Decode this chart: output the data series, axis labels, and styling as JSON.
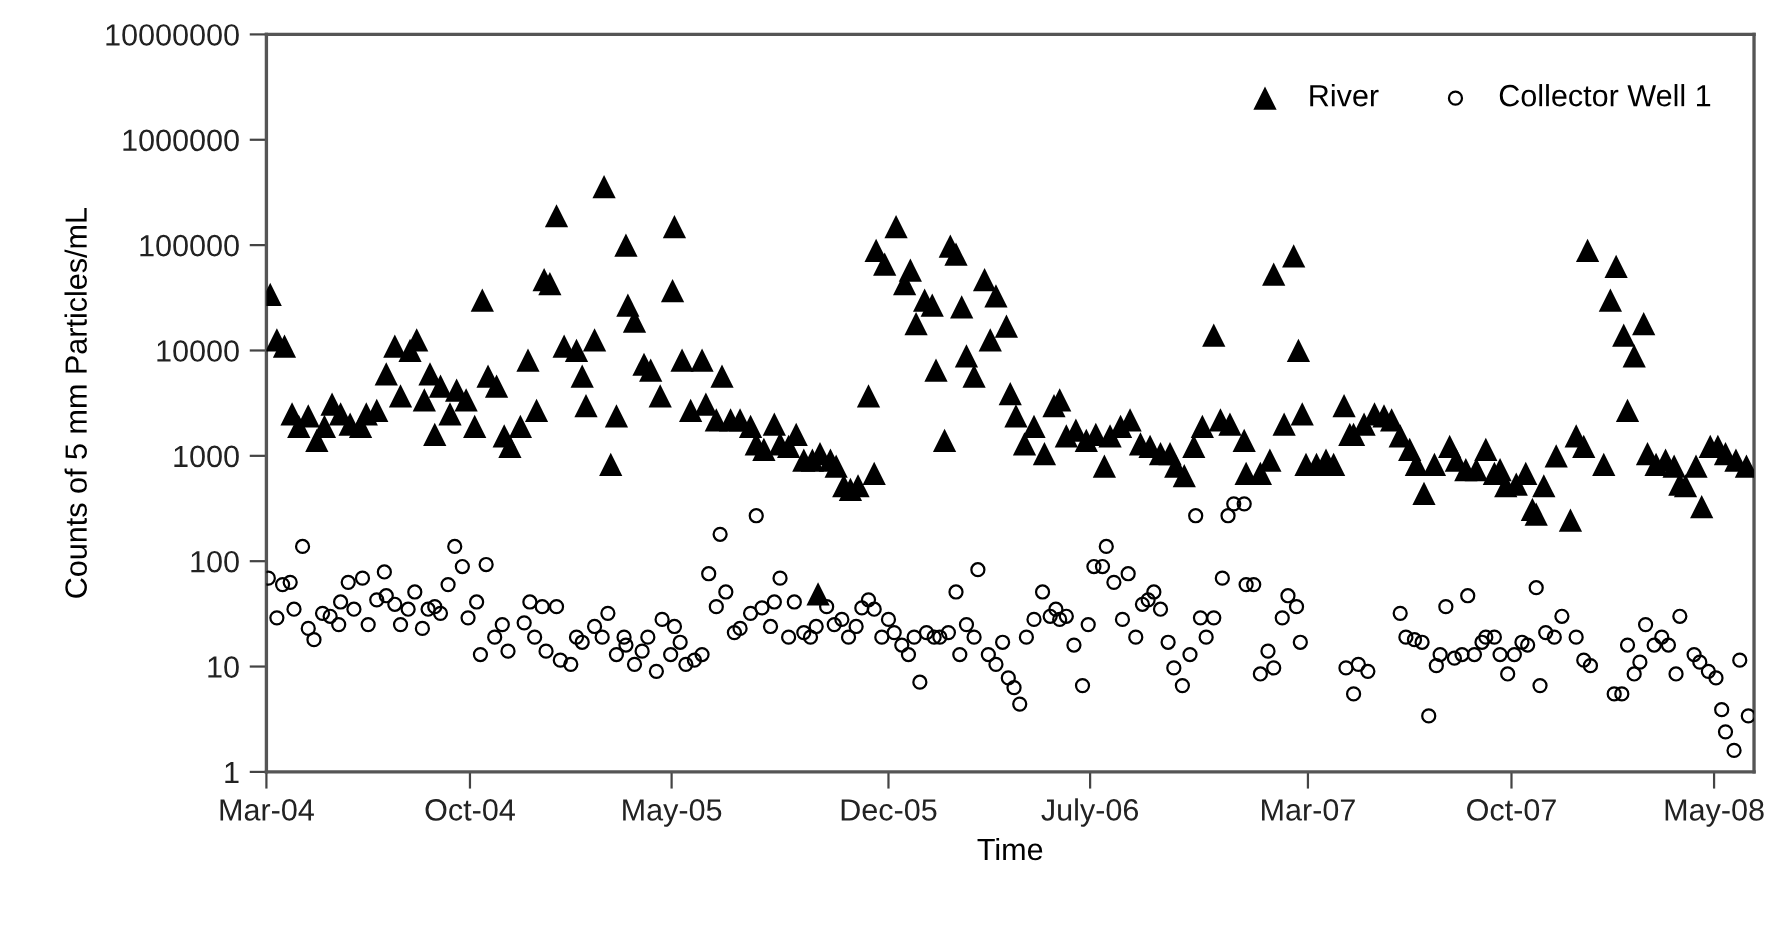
{
  "chart_data": {
    "type": "scatter",
    "xlabel": "Time",
    "ylabel": "Counts of 5 mm Particles/mL",
    "log": "y",
    "grid": false,
    "legend": "top right",
    "xlim": [
      "2004-03-01",
      "2008-06-12"
    ],
    "xticks": [
      {
        "value": "2004-03-01",
        "label": "Mar-04"
      },
      {
        "value": "2004-10-01",
        "label": "Oct-04"
      },
      {
        "value": "2005-05-01",
        "label": "May-05"
      },
      {
        "value": "2005-12-15",
        "label": "Dec-05"
      },
      {
        "value": "2006-07-15",
        "label": "July-06"
      },
      {
        "value": "2007-03-01",
        "label": "Mar-07"
      },
      {
        "value": "2007-10-01",
        "label": "Oct-07"
      },
      {
        "value": "2008-05-01",
        "label": "May-08"
      }
    ],
    "ylim": [
      1,
      10000000
    ],
    "yticks": [
      1,
      10,
      100,
      1000,
      10000,
      100000,
      1000000,
      10000000
    ],
    "series": [
      {
        "name": "River",
        "color": "#000000",
        "marker": "triangle",
        "x": [
          "2004-03-05",
          "2004-03-12",
          "2004-03-20",
          "2004-03-28",
          "2004-04-04",
          "2004-04-14",
          "2004-04-23",
          "2004-05-01",
          "2004-05-09",
          "2004-05-18",
          "2004-05-28",
          "2004-06-08",
          "2004-06-14",
          "2004-06-25",
          "2004-07-05",
          "2004-07-14",
          "2004-07-20",
          "2004-07-30",
          "2004-08-06",
          "2004-08-14",
          "2004-08-20",
          "2004-08-25",
          "2004-08-31",
          "2004-09-10",
          "2004-09-17",
          "2004-09-27",
          "2004-10-06",
          "2004-10-14",
          "2004-10-20",
          "2004-10-29",
          "2004-11-06",
          "2004-11-12",
          "2004-11-23",
          "2004-12-01",
          "2004-12-10",
          "2004-12-18",
          "2004-12-24",
          "2004-12-31",
          "2005-01-08",
          "2005-01-21",
          "2005-01-27",
          "2005-01-31",
          "2005-02-09",
          "2005-02-19",
          "2005-02-26",
          "2005-03-04",
          "2005-03-14",
          "2005-03-16",
          "2005-03-23",
          "2005-04-02",
          "2005-04-09",
          "2005-04-19",
          "2005-05-02",
          "2005-05-04",
          "2005-05-12",
          "2005-05-21",
          "2005-06-02",
          "2005-06-06",
          "2005-06-17",
          "2005-06-23",
          "2005-07-02",
          "2005-07-12",
          "2005-07-23",
          "2005-07-29",
          "2005-08-06",
          "2005-08-17",
          "2005-08-23",
          "2005-09-01",
          "2005-09-09",
          "2005-09-17",
          "2005-09-26",
          "2005-10-02",
          "2005-10-04",
          "2005-10-15",
          "2005-10-21",
          "2005-10-29",
          "2005-11-05",
          "2005-11-13",
          "2005-11-24",
          "2005-11-30",
          "2005-12-02",
          "2005-12-11",
          "2005-12-23",
          "2006-01-01",
          "2006-01-07",
          "2006-01-13",
          "2006-01-22",
          "2006-01-30",
          "2006-02-03",
          "2006-02-12",
          "2006-02-18",
          "2006-02-24",
          "2006-03-02",
          "2006-03-07",
          "2006-03-15",
          "2006-03-26",
          "2006-04-01",
          "2006-04-07",
          "2006-04-18",
          "2006-04-22",
          "2006-04-28",
          "2006-05-07",
          "2006-05-17",
          "2006-05-28",
          "2006-06-07",
          "2006-06-13",
          "2006-06-20",
          "2006-06-30",
          "2006-07-11",
          "2006-07-21",
          "2006-07-30",
          "2006-08-05",
          "2006-08-16",
          "2006-08-26",
          "2006-09-06",
          "2006-09-16",
          "2006-09-27",
          "2006-10-07",
          "2006-10-13",
          "2006-10-22",
          "2006-11-01",
          "2006-11-10",
          "2006-11-22",
          "2006-11-29",
          "2006-12-09",
          "2006-12-24",
          "2006-12-26",
          "2007-01-10",
          "2007-01-20",
          "2007-01-24",
          "2007-02-04",
          "2007-02-14",
          "2007-02-19",
          "2007-02-23",
          "2007-02-27",
          "2007-03-10",
          "2007-03-20",
          "2007-03-28",
          "2007-04-08",
          "2007-04-14",
          "2007-04-18",
          "2007-04-29",
          "2007-05-10",
          "2007-05-20",
          "2007-05-28",
          "2007-06-06",
          "2007-06-16",
          "2007-06-23",
          "2007-07-01",
          "2007-07-12",
          "2007-07-28",
          "2007-08-04",
          "2007-08-14",
          "2007-08-25",
          "2007-09-04",
          "2007-09-13",
          "2007-09-19",
          "2007-09-25",
          "2007-10-06",
          "2007-10-16",
          "2007-10-23",
          "2007-10-27",
          "2007-11-04",
          "2007-11-17",
          "2007-12-02",
          "2007-12-08",
          "2007-12-16",
          "2007-12-20",
          "2008-01-06",
          "2008-01-13",
          "2008-01-19",
          "2008-01-27",
          "2008-01-31",
          "2008-02-07",
          "2008-02-17",
          "2008-02-21",
          "2008-03-01",
          "2008-03-11",
          "2008-03-20",
          "2008-03-26",
          "2008-04-01",
          "2008-04-12",
          "2008-04-18",
          "2008-04-27",
          "2008-05-05",
          "2008-05-13",
          "2008-05-24",
          "2008-06-04"
        ],
        "values": [
          34000,
          12600,
          11000,
          2500,
          1900,
          2400,
          1400,
          1900,
          3100,
          2500,
          2000,
          1900,
          2500,
          2700,
          6000,
          11000,
          3700,
          10000,
          12600,
          3400,
          6000,
          1600,
          4600,
          2500,
          4200,
          3400,
          1900,
          30000,
          5700,
          4600,
          1550,
          1230,
          1900,
          8100,
          2700,
          47000,
          43000,
          190000,
          11000,
          10000,
          5700,
          3000,
          12600,
          360000,
          830,
          2400,
          100000,
          27000,
          19000,
          7400,
          6500,
          3700,
          37000,
          150000,
          8100,
          2700,
          8100,
          3100,
          2200,
          5700,
          2200,
          2200,
          1900,
          1300,
          1150,
          2000,
          1300,
          1230,
          1600,
          910,
          910,
          49,
          1050,
          910,
          800,
          520,
          480,
          520,
          3700,
          680,
          89000,
          66000,
          150000,
          43000,
          58000,
          18000,
          30000,
          27000,
          6500,
          1400,
          98000,
          82000,
          26000,
          8900,
          5700,
          47000,
          12600,
          33000,
          17000,
          3900,
          2400,
          1300,
          1900,
          1050,
          3000,
          3400,
          1550,
          1750,
          1400,
          1600,
          800,
          1550,
          1900,
          2200,
          1300,
          1230,
          1050,
          1050,
          800,
          650,
          1230,
          1900,
          14000,
          2200,
          2000,
          1400,
          680,
          680,
          910,
          53000,
          2000,
          79000,
          10000,
          2500,
          830,
          830,
          910,
          830,
          3000,
          1600,
          1600,
          2000,
          2500,
          2400,
          2200,
          1550,
          1150,
          830,
          440,
          830,
          1230,
          910,
          740,
          740,
          1150,
          680,
          740,
          520,
          540,
          680,
          310,
          280,
          520,
          1000,
          245,
          1550,
          1230,
          89000,
          830,
          30000,
          63000,
          14000,
          2700,
          8900,
          18000,
          1050,
          830,
          910,
          800,
          540,
          520,
          800,
          330,
          1230,
          1230,
          1050,
          910,
          800
        ]
      },
      {
        "name": "Collector Well 1",
        "color": "#000000",
        "marker": "circle",
        "x": [
          "2004-03-03",
          "2004-03-12",
          "2004-03-18",
          "2004-03-26",
          "2004-03-30",
          "2004-04-08",
          "2004-04-14",
          "2004-04-20",
          "2004-04-29",
          "2004-05-07",
          "2004-05-16",
          "2004-05-18",
          "2004-05-26",
          "2004-06-01",
          "2004-06-10",
          "2004-06-16",
          "2004-06-25",
          "2004-07-03",
          "2004-07-05",
          "2004-07-14",
          "2004-07-20",
          "2004-07-28",
          "2004-08-04",
          "2004-08-12",
          "2004-08-18",
          "2004-08-25",
          "2004-08-31",
          "2004-09-08",
          "2004-09-15",
          "2004-09-23",
          "2004-09-29",
          "2004-10-08",
          "2004-10-12",
          "2004-10-18",
          "2004-10-27",
          "2004-11-04",
          "2004-11-10",
          "2004-11-27",
          "2004-12-03",
          "2004-12-08",
          "2004-12-16",
          "2004-12-20",
          "2004-12-31",
          "2005-01-04",
          "2005-01-15",
          "2005-01-21",
          "2005-01-27",
          "2005-02-09",
          "2005-02-17",
          "2005-02-23",
          "2005-03-04",
          "2005-03-12",
          "2005-03-14",
          "2005-03-23",
          "2005-03-31",
          "2005-04-06",
          "2005-04-15",
          "2005-04-21",
          "2005-04-30",
          "2005-05-04",
          "2005-05-10",
          "2005-05-16",
          "2005-05-25",
          "2005-06-02",
          "2005-06-09",
          "2005-06-17",
          "2005-06-21",
          "2005-06-27",
          "2005-07-06",
          "2005-07-12",
          "2005-07-23",
          "2005-07-29",
          "2005-08-04",
          "2005-08-13",
          "2005-08-17",
          "2005-08-23",
          "2005-09-01",
          "2005-09-07",
          "2005-09-17",
          "2005-09-24",
          "2005-09-30",
          "2005-10-11",
          "2005-10-19",
          "2005-10-27",
          "2005-11-03",
          "2005-11-11",
          "2005-11-17",
          "2005-11-24",
          "2005-11-30",
          "2005-12-08",
          "2005-12-15",
          "2005-12-21",
          "2005-12-29",
          "2006-01-05",
          "2006-01-11",
          "2006-01-17",
          "2006-01-24",
          "2006-02-01",
          "2006-02-07",
          "2006-02-16",
          "2006-02-24",
          "2006-02-28",
          "2006-03-07",
          "2006-03-15",
          "2006-03-19",
          "2006-03-30",
          "2006-04-07",
          "2006-04-14",
          "2006-04-20",
          "2006-04-26",
          "2006-05-02",
          "2006-05-09",
          "2006-05-17",
          "2006-05-26",
          "2006-06-03",
          "2006-06-09",
          "2006-06-13",
          "2006-06-20",
          "2006-06-28",
          "2006-07-07",
          "2006-07-13",
          "2006-07-19",
          "2006-07-28",
          "2006-08-01",
          "2006-08-09",
          "2006-08-18",
          "2006-08-24",
          "2006-09-01",
          "2006-09-08",
          "2006-09-14",
          "2006-09-20",
          "2006-09-27",
          "2006-10-05",
          "2006-10-11",
          "2006-10-20",
          "2006-10-28",
          "2006-11-03",
          "2006-11-08",
          "2006-11-14",
          "2006-11-22",
          "2006-12-01",
          "2006-12-07",
          "2006-12-13",
          "2006-12-24",
          "2006-12-26",
          "2007-01-03",
          "2007-01-10",
          "2007-01-18",
          "2007-01-24",
          "2007-02-02",
          "2007-02-08",
          "2007-02-17",
          "2007-02-21",
          "2007-04-10",
          "2007-04-18",
          "2007-04-23",
          "2007-05-03",
          "2007-06-06",
          "2007-06-12",
          "2007-06-21",
          "2007-06-29",
          "2007-07-06",
          "2007-07-14",
          "2007-07-18",
          "2007-07-24",
          "2007-08-02",
          "2007-08-10",
          "2007-08-16",
          "2007-08-23",
          "2007-08-31",
          "2007-09-04",
          "2007-09-13",
          "2007-09-19",
          "2007-09-27",
          "2007-10-04",
          "2007-10-12",
          "2007-10-18",
          "2007-10-27",
          "2007-10-31",
          "2007-11-06",
          "2007-11-15",
          "2007-11-23",
          "2007-12-08",
          "2007-12-16",
          "2007-12-23",
          "2008-01-17",
          "2008-01-25",
          "2008-01-31",
          "2008-02-07",
          "2008-02-13",
          "2008-02-19",
          "2008-02-28",
          "2008-03-07",
          "2008-03-14",
          "2008-03-22",
          "2008-03-26",
          "2008-04-10",
          "2008-04-16",
          "2008-04-25",
          "2008-05-03",
          "2008-05-09",
          "2008-05-13",
          "2008-05-22",
          "2008-05-28",
          "2008-06-06"
        ],
        "values": [
          69,
          29,
          60,
          63,
          35,
          138,
          23,
          18,
          32,
          30,
          25,
          41,
          63,
          35,
          69,
          25,
          43,
          79,
          47,
          39,
          25,
          35,
          51,
          23,
          35,
          37,
          32,
          60,
          138,
          89,
          29,
          41,
          13,
          93,
          19,
          25,
          14,
          26,
          41,
          19,
          37,
          14,
          37,
          11.5,
          10.5,
          19,
          17,
          24,
          19,
          32,
          13,
          19,
          16,
          10.5,
          14,
          19,
          9,
          28,
          13,
          24,
          17,
          10.5,
          11.5,
          13,
          76,
          37,
          180,
          51,
          21,
          23,
          32,
          270,
          36,
          24,
          41,
          69,
          19,
          41,
          21,
          19,
          24,
          37,
          25,
          28,
          19,
          24,
          36,
          43,
          35,
          19,
          28,
          21,
          16,
          13,
          19,
          7.1,
          21,
          19,
          19,
          21,
          51,
          13,
          25,
          19,
          83,
          13,
          10.5,
          17,
          7.8,
          6.3,
          4.4,
          19,
          28,
          51,
          30,
          35,
          28,
          30,
          16,
          6.6,
          25,
          89,
          89,
          138,
          63,
          28,
          76,
          19,
          39,
          43,
          51,
          35,
          17,
          9.7,
          6.6,
          13,
          270,
          29,
          19,
          29,
          69,
          270,
          350,
          350,
          60,
          60,
          8.5,
          14,
          9.7,
          29,
          47,
          37,
          17,
          9.7,
          5.5,
          10.5,
          9,
          32,
          19,
          18,
          17,
          3.4,
          10.2,
          13,
          37,
          12,
          13,
          47,
          13,
          17,
          19,
          19,
          13,
          8.5,
          13,
          17,
          16,
          56,
          6.6,
          21,
          19,
          30,
          19,
          11.5,
          10.2,
          5.5,
          5.5,
          16,
          8.5,
          11,
          25,
          16,
          19,
          16,
          8.5,
          30,
          13,
          11,
          9,
          7.8,
          3.9,
          2.4,
          1.6,
          11.5,
          3.4
        ]
      }
    ]
  }
}
